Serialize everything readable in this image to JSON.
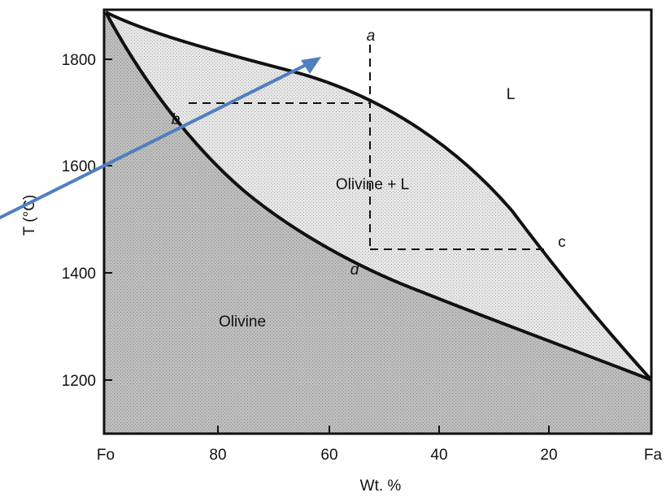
{
  "diagram": {
    "y_axis_title": "T (°C)",
    "x_axis_title": "Wt. %",
    "y_ticks": [
      {
        "value": 1200,
        "label": "1200"
      },
      {
        "value": 1400,
        "label": "1400"
      },
      {
        "value": 1600,
        "label": "1600"
      },
      {
        "value": 1800,
        "label": "1800"
      }
    ],
    "x_ticks": [
      {
        "value": 100,
        "label": "Fo"
      },
      {
        "value": 80,
        "label": "80"
      },
      {
        "value": 60,
        "label": "60"
      },
      {
        "value": 40,
        "label": "40"
      },
      {
        "value": 20,
        "label": "20"
      },
      {
        "value": 0,
        "label": "Fa"
      }
    ],
    "regions": {
      "liquid": "L",
      "two_phase": "Olivine + L",
      "solid": "Olivine"
    },
    "points": {
      "a": "a",
      "b": "b",
      "c": "c",
      "d": "d"
    },
    "colors": {
      "solid_fill": "#b9b9b9",
      "two_phase_fill": "#e0e0e0",
      "liquid_fill": "#ffffff",
      "arrow": "#4f7fbe",
      "lines": "#111111"
    }
  }
}
